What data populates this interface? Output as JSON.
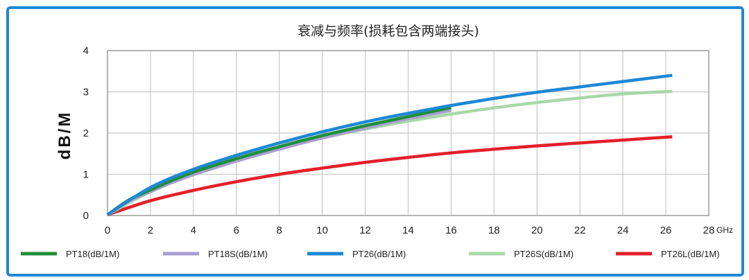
{
  "chart_data": {
    "type": "line",
    "title": "衰减与频率(损耗包含两端接头)",
    "ylabel": "dB/M",
    "xlabel": "",
    "x_unit": "GHz",
    "xlim": [
      0,
      28
    ],
    "ylim": [
      0,
      4
    ],
    "x_ticks": [
      "0",
      "2",
      "4",
      "6",
      "8",
      "10",
      "12",
      "14",
      "16",
      "18",
      "20",
      "22",
      "24",
      "26",
      "28"
    ],
    "y_ticks": [
      "0",
      "1",
      "2",
      "3",
      "4"
    ],
    "grid": true,
    "legend_position": "bottom",
    "series": [
      {
        "name": "PT18(dB/1M)",
        "color": "#1f8f3a",
        "x": [
          0,
          1,
          2,
          3,
          4,
          5,
          6,
          7,
          8,
          9,
          10,
          11,
          12,
          13,
          14,
          15,
          16
        ],
        "y": [
          0.02,
          0.38,
          0.62,
          0.85,
          1.05,
          1.22,
          1.38,
          1.53,
          1.67,
          1.81,
          1.94,
          2.06,
          2.18,
          2.29,
          2.4,
          2.51,
          2.62
        ]
      },
      {
        "name": "PT18S(dB/1M)",
        "color": "#a99fd2",
        "x": [
          0,
          1,
          2,
          3,
          4,
          5,
          6,
          7,
          8,
          9,
          10,
          11,
          12,
          13,
          14,
          15,
          16
        ],
        "y": [
          0.02,
          0.35,
          0.58,
          0.8,
          0.99,
          1.16,
          1.32,
          1.47,
          1.61,
          1.75,
          1.88,
          2.0,
          2.12,
          2.24,
          2.35,
          2.45,
          2.55
        ]
      },
      {
        "name": "PT26(dB/1M)",
        "color": "#1e88d6",
        "x": [
          0,
          2,
          4,
          6,
          8,
          10,
          12,
          14,
          16,
          18,
          20,
          22,
          24,
          26.3
        ],
        "y": [
          0.02,
          0.68,
          1.12,
          1.46,
          1.76,
          2.03,
          2.27,
          2.48,
          2.67,
          2.84,
          2.99,
          3.12,
          3.25,
          3.4
        ]
      },
      {
        "name": "PT26S(dB/1M)",
        "color": "#a8d8a8",
        "x": [
          0,
          2,
          4,
          6,
          8,
          10,
          12,
          14,
          16,
          18,
          20,
          22,
          24,
          26.3
        ],
        "y": [
          0.02,
          0.58,
          1.0,
          1.34,
          1.63,
          1.88,
          2.1,
          2.29,
          2.46,
          2.61,
          2.74,
          2.85,
          2.95,
          3.01
        ]
      },
      {
        "name": "PT26L(dB/1M)",
        "color": "#e3202a",
        "x": [
          0,
          2,
          4,
          6,
          8,
          10,
          12,
          14,
          16,
          18,
          20,
          22,
          24,
          26.3
        ],
        "y": [
          0.02,
          0.36,
          0.61,
          0.82,
          1.0,
          1.15,
          1.29,
          1.41,
          1.52,
          1.61,
          1.69,
          1.76,
          1.83,
          1.91
        ]
      }
    ]
  }
}
